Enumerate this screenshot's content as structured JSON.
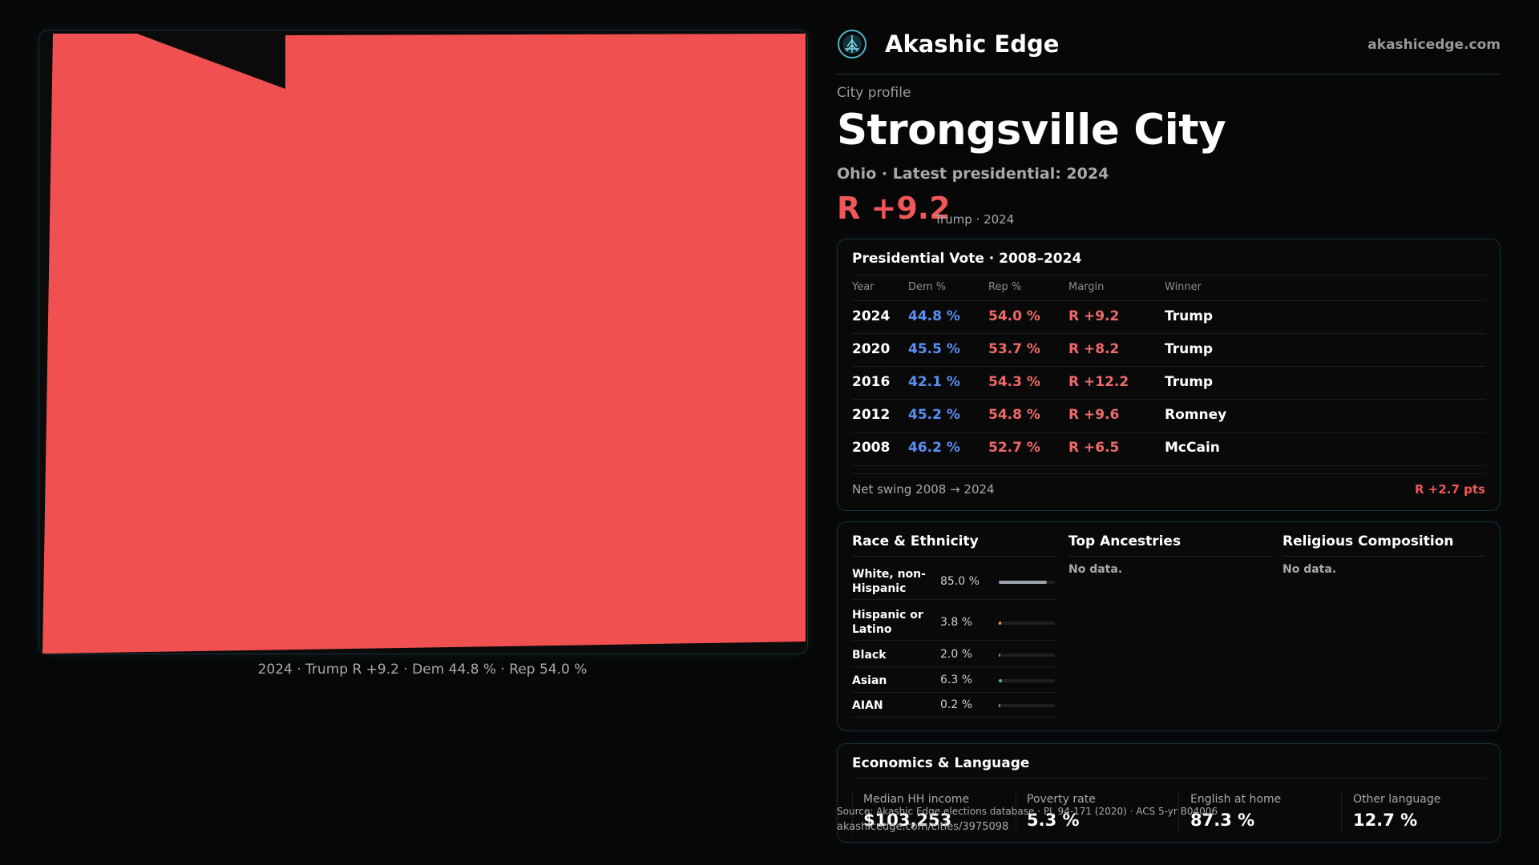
{
  "map": {
    "fill_color": "#f05050",
    "caption": "2024 · Trump R +9.2 · Dem 44.8 % · Rep 54.0 %"
  },
  "brand": {
    "name": "Akashic Edge",
    "url": "akashicedge.com",
    "logo_icon": "tree-globe-icon",
    "accent": "#4fb3c8"
  },
  "profile": {
    "kicker": "City profile",
    "title": "Strongsville City",
    "subtitle": "Ohio · Latest presidential: 2024",
    "headline_margin": "R +9.2",
    "headline_note": "Trump · 2024"
  },
  "presidential": {
    "title": "Presidential Vote · 2008–2024",
    "columns": [
      "Year",
      "Dem %",
      "Rep %",
      "Margin",
      "Winner"
    ],
    "rows": [
      {
        "year": "2024",
        "dem": "44.8 %",
        "rep": "54.0 %",
        "margin": "R +9.2",
        "winner": "Trump"
      },
      {
        "year": "2020",
        "dem": "45.5 %",
        "rep": "53.7 %",
        "margin": "R +8.2",
        "winner": "Trump"
      },
      {
        "year": "2016",
        "dem": "42.1 %",
        "rep": "54.3 %",
        "margin": "R +12.2",
        "winner": "Trump"
      },
      {
        "year": "2012",
        "dem": "45.2 %",
        "rep": "54.8 %",
        "margin": "R +9.6",
        "winner": "Romney"
      },
      {
        "year": "2008",
        "dem": "46.2 %",
        "rep": "52.7 %",
        "margin": "R +6.5",
        "winner": "McCain"
      }
    ],
    "swing_label": "Net swing 2008 → 2024",
    "swing_value": "R +2.7 pts"
  },
  "demographics": {
    "race_title": "Race & Ethnicity",
    "race": [
      {
        "label": "White, non-Hispanic",
        "value": "85.0 %",
        "fraction": 0.85,
        "color": "#9aa3ad"
      },
      {
        "label": "Hispanic or Latino",
        "value": "3.8 %",
        "fraction": 0.038,
        "color": "#e8a33c"
      },
      {
        "label": "Black",
        "value": "2.0 %",
        "fraction": 0.02,
        "color": "#7b6cf0"
      },
      {
        "label": "Asian",
        "value": "6.3 %",
        "fraction": 0.063,
        "color": "#3ecf7a"
      },
      {
        "label": "AIAN",
        "value": "0.2 %",
        "fraction": 0.002,
        "color": "#c56bd8"
      }
    ],
    "ancestry_title": "Top Ancestries",
    "ancestry_empty": "No data.",
    "religion_title": "Religious Composition",
    "religion_empty": "No data."
  },
  "economics": {
    "title": "Economics & Language",
    "stats": [
      {
        "label": "Median HH income",
        "value": "$103,253"
      },
      {
        "label": "Poverty rate",
        "value": "5.3 %"
      },
      {
        "label": "English at home",
        "value": "87.3 %"
      },
      {
        "label": "Other language",
        "value": "12.7 %"
      }
    ]
  },
  "footer": {
    "source": "Source: Akashic Edge elections database · PL 94-171 (2020) · ACS 5-yr B04006",
    "url": "akashicedge.com/cities/3975098"
  }
}
